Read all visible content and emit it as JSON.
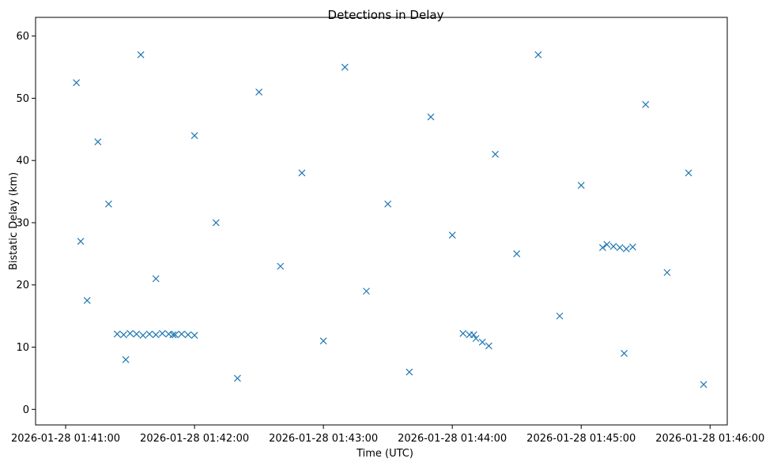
{
  "chart_data": {
    "type": "scatter",
    "title": "Detections in Delay",
    "xlabel": "Time (UTC)",
    "ylabel": "Bistatic Delay (km)",
    "x_range": [
      "2026-01-28 01:40:46",
      "2026-01-28 01:46:08"
    ],
    "ylim": [
      -2.5,
      63
    ],
    "x_ticks": [
      "2026-01-28 01:41:00",
      "2026-01-28 01:42:00",
      "2026-01-28 01:43:00",
      "2026-01-28 01:44:00",
      "2026-01-28 01:45:00",
      "2026-01-28 01:46:00"
    ],
    "y_ticks": [
      0,
      10,
      20,
      30,
      40,
      50,
      60
    ],
    "grid": false,
    "marker": "x",
    "color": "#1f77b4",
    "series": [
      {
        "x": [
          "2026-01-28 01:41:05",
          "2026-01-28 01:41:07",
          "2026-01-28 01:41:10",
          "2026-01-28 01:41:15",
          "2026-01-28 01:41:20",
          "2026-01-28 01:41:28",
          "2026-01-28 01:41:35",
          "2026-01-28 01:41:42",
          "2026-01-28 01:41:50",
          "2026-01-28 01:42:00",
          "2026-01-28 01:42:10",
          "2026-01-28 01:42:20",
          "2026-01-28 01:42:30",
          "2026-01-28 01:42:40",
          "2026-01-28 01:42:50",
          "2026-01-28 01:43:00",
          "2026-01-28 01:43:10",
          "2026-01-28 01:43:20",
          "2026-01-28 01:43:30",
          "2026-01-28 01:43:40",
          "2026-01-28 01:43:50",
          "2026-01-28 01:44:00",
          "2026-01-28 01:44:10",
          "2026-01-28 01:44:20",
          "2026-01-28 01:44:30",
          "2026-01-28 01:44:40",
          "2026-01-28 01:44:50",
          "2026-01-28 01:45:00",
          "2026-01-28 01:45:10",
          "2026-01-28 01:45:20",
          "2026-01-28 01:45:30",
          "2026-01-28 01:45:40",
          "2026-01-28 01:45:50",
          "2026-01-28 01:45:57"
        ],
        "y": [
          52.5,
          27,
          17.5,
          43,
          33,
          8,
          57,
          21,
          12,
          44,
          30,
          5,
          51,
          23,
          38,
          11,
          55,
          19,
          33,
          6,
          47,
          28,
          12,
          41,
          25,
          57,
          15,
          36,
          26,
          9,
          49,
          22,
          38,
          4
        ]
      },
      {
        "x": [
          "2026-01-28 01:41:24",
          "2026-01-28 01:41:27",
          "2026-01-28 01:41:30",
          "2026-01-28 01:41:33",
          "2026-01-28 01:41:36",
          "2026-01-28 01:41:39",
          "2026-01-28 01:41:42",
          "2026-01-28 01:41:45",
          "2026-01-28 01:41:48",
          "2026-01-28 01:41:51",
          "2026-01-28 01:41:54",
          "2026-01-28 01:41:57",
          "2026-01-28 01:42:00"
        ],
        "y": [
          12.1,
          12.0,
          12.2,
          12.1,
          11.9,
          12.1,
          12.0,
          12.2,
          12.1,
          12.0,
          12.1,
          12.0,
          11.9
        ]
      },
      {
        "x": [
          "2026-01-28 01:44:05",
          "2026-01-28 01:44:08",
          "2026-01-28 01:44:11",
          "2026-01-28 01:44:14",
          "2026-01-28 01:44:17"
        ],
        "y": [
          12.2,
          12.0,
          11.4,
          10.8,
          10.2
        ]
      },
      {
        "x": [
          "2026-01-28 01:45:12",
          "2026-01-28 01:45:15",
          "2026-01-28 01:45:18",
          "2026-01-28 01:45:21",
          "2026-01-28 01:45:24"
        ],
        "y": [
          26.5,
          26.2,
          26.0,
          25.8,
          26.1
        ]
      }
    ]
  }
}
